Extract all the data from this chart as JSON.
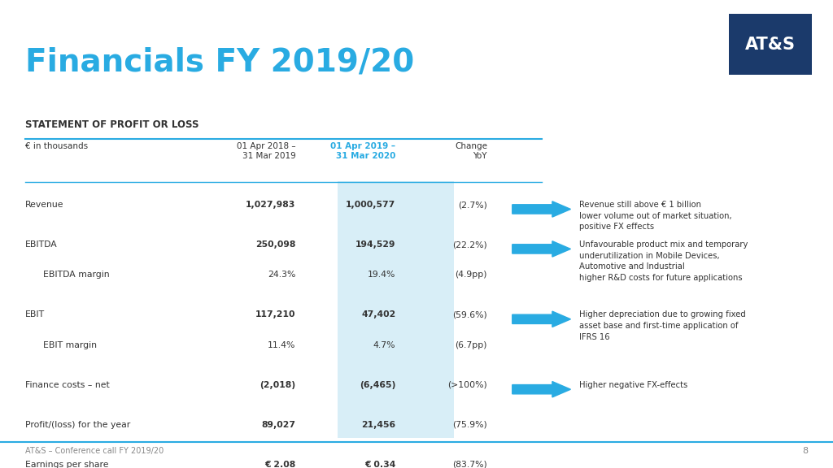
{
  "title": "Financials FY 2019/20",
  "title_color": "#29ABE2",
  "title_fontsize": 28,
  "logo_text": "AT&S",
  "logo_bg": "#1B3A6B",
  "logo_text_color": "#FFFFFF",
  "section_header": "STATEMENT OF PROFIT OR LOSS",
  "col_headers": [
    "€ in thousands",
    "01 Apr 2018 –\n31 Mar 2019",
    "01 Apr 2019 –\n31 Mar 2020",
    "Change\nYoY"
  ],
  "col2_color": "#29ABE2",
  "col3_highlight_bg": "#D8EEF7",
  "rows": [
    {
      "label": "Revenue",
      "col1": "1,027,983",
      "col2": "1,000,577",
      "col3": "(2.7%)",
      "arrow": true,
      "indent": false
    },
    {
      "label": "EBITDA",
      "col1": "250,098",
      "col2": "194,529",
      "col3": "(22.2%)",
      "arrow": true,
      "indent": false
    },
    {
      "label": "EBITDA margin",
      "col1": "24.3%",
      "col2": "19.4%",
      "col3": "(4.9pp)",
      "arrow": false,
      "indent": true
    },
    {
      "label": "EBIT",
      "col1": "117,210",
      "col2": "47,402",
      "col3": "(59.6%)",
      "arrow": true,
      "indent": false
    },
    {
      "label": "EBIT margin",
      "col1": "11.4%",
      "col2": "4.7%",
      "col3": "(6.7pp)",
      "arrow": false,
      "indent": true
    },
    {
      "label": "Finance costs – net",
      "col1": "(2,018)",
      "col2": "(6,465)",
      "col3": "(>100%)",
      "arrow": true,
      "indent": false
    },
    {
      "label": "Profit/(loss) for the year",
      "col1": "89,027",
      "col2": "21,456",
      "col3": "(75.9%)",
      "arrow": false,
      "indent": false
    },
    {
      "label": "Earnings per share",
      "col1": "€ 2.08",
      "col2": "€ 0.34",
      "col3": "(83.7%)",
      "arrow": false,
      "indent": false
    }
  ],
  "arrow_rows": [
    0,
    1,
    3,
    5
  ],
  "comments": [
    "Revenue still above € 1 billion\nlower volume out of market situation,\npositive FX effects",
    "Unfavourable product mix and temporary\nunderutilization in Mobile Devices,\nAutomotive and Industrial\nhigher R&D costs for future applications",
    "Higher depreciation due to growing fixed\nasset base and first-time application of\nIFRS 16",
    "Higher negative FX-effects"
  ],
  "footer_text": "AT&S – Conference call FY 2019/20",
  "footer_page": "8",
  "bg_color": "#FFFFFF",
  "text_color": "#333333",
  "line_color": "#29ABE2",
  "arrow_color": "#29ABE2"
}
